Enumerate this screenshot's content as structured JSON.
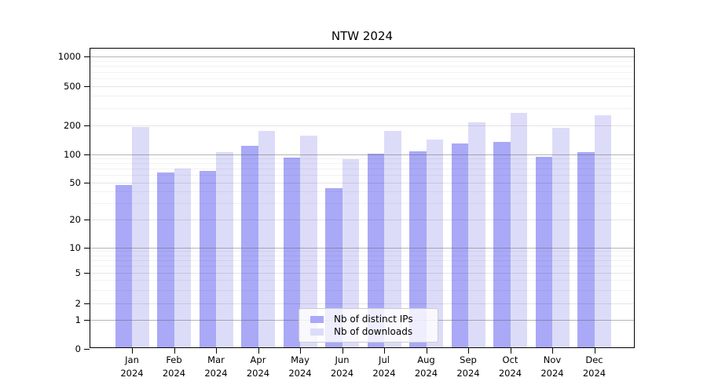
{
  "title": "NTW 2024",
  "legend": {
    "items": [
      {
        "label": "Nb of distinct IPs",
        "series": "distinct_ips"
      },
      {
        "label": "Nb of downloads",
        "series": "downloads"
      }
    ]
  },
  "y_axis": {
    "tick_labels": [
      "1000",
      "500",
      "200",
      "100",
      "50",
      "20",
      "10",
      "5",
      "2",
      "1",
      "0"
    ],
    "tick_values": [
      1000,
      500,
      200,
      100,
      50,
      20,
      10,
      5,
      2,
      1,
      0
    ]
  },
  "x_axis": {
    "months": [
      "Jan",
      "Feb",
      "Mar",
      "Apr",
      "May",
      "Jun",
      "Jul",
      "Aug",
      "Sep",
      "Oct",
      "Nov",
      "Dec"
    ],
    "year": "2024"
  },
  "chart_data": {
    "type": "bar",
    "title": "NTW 2024",
    "categories": [
      "Jan 2024",
      "Feb 2024",
      "Mar 2024",
      "Apr 2024",
      "May 2024",
      "Jun 2024",
      "Jul 2024",
      "Aug 2024",
      "Sep 2024",
      "Oct 2024",
      "Nov 2024",
      "Dec 2024"
    ],
    "series": [
      {
        "name": "Nb of distinct IPs",
        "key": "distinct_ips",
        "values": [
          47,
          64,
          67,
          123,
          92,
          44,
          101,
          106,
          130,
          135,
          94,
          105
        ]
      },
      {
        "name": "Nb of downloads",
        "key": "downloads",
        "values": [
          191,
          70,
          104,
          176,
          157,
          88,
          174,
          143,
          217,
          266,
          189,
          252
        ]
      }
    ],
    "y_scale": "symlog",
    "y_ticks": [
      0,
      1,
      2,
      5,
      10,
      20,
      50,
      100,
      200,
      500,
      1000
    ],
    "ylim": [
      0,
      1200
    ],
    "grid": true,
    "legend_position": "lower center",
    "colors": {
      "distinct_ips": "#a9a9f7",
      "downloads": "#dcdcf9"
    }
  }
}
